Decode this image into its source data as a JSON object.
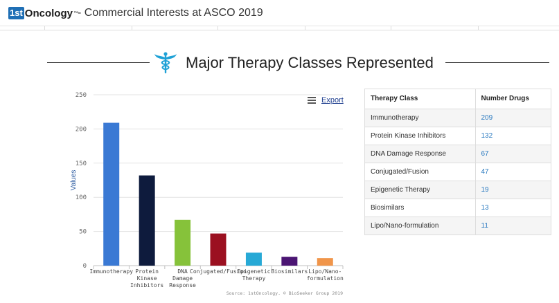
{
  "header": {
    "logo_1st": "1st",
    "logo_oncology": "Oncology",
    "logo_tm": "™",
    "title": "- Commercial Interests at ASCO 2019"
  },
  "section": {
    "title": "Major Therapy Classes Represented",
    "icon": "caduceus-icon"
  },
  "chart": {
    "export_label": "Export",
    "menu_icon": "hamburger-menu-icon"
  },
  "chart_data": {
    "type": "bar",
    "categories": [
      "Immunotherapy",
      "Protein Kinase Inhibitors",
      "DNA Damage Response",
      "Conjugated/Fusion",
      "Epigenetic Therapy",
      "Biosimilars",
      "Lipo/Nano-formulation"
    ],
    "category_lines": [
      [
        "Immunotherapy"
      ],
      [
        "Protein",
        "Kinase",
        "Inhibitors"
      ],
      [
        "DNA",
        "Damage",
        "Response"
      ],
      [
        "Conjugated/Fusion"
      ],
      [
        "Epigenetic",
        "Therapy"
      ],
      [
        "Biosimilars"
      ],
      [
        "Lipo/Nano-",
        "formulation"
      ]
    ],
    "values": [
      209,
      132,
      67,
      47,
      19,
      13,
      11
    ],
    "colors": [
      "#3a79d4",
      "#0e1b3d",
      "#86c23a",
      "#9b1020",
      "#27a9d6",
      "#4b1573",
      "#f0954a"
    ],
    "ylabel": "Values",
    "xlabel": "",
    "ylim": [
      0,
      250
    ],
    "yticks": [
      0,
      50,
      100,
      150,
      200,
      250
    ],
    "grid": true,
    "credit": "Source: 1stOncology. © BioSeeker Group 2019"
  },
  "table": {
    "headers": [
      "Therapy Class",
      "Number Drugs"
    ],
    "rows": [
      [
        "Immunotherapy",
        "209"
      ],
      [
        "Protein Kinase Inhibitors",
        "132"
      ],
      [
        "DNA Damage Response",
        "67"
      ],
      [
        "Conjugated/Fusion",
        "47"
      ],
      [
        "Epigenetic Therapy",
        "19"
      ],
      [
        "Biosimilars",
        "13"
      ],
      [
        "Lipo/Nano-formulation",
        "11"
      ]
    ]
  }
}
